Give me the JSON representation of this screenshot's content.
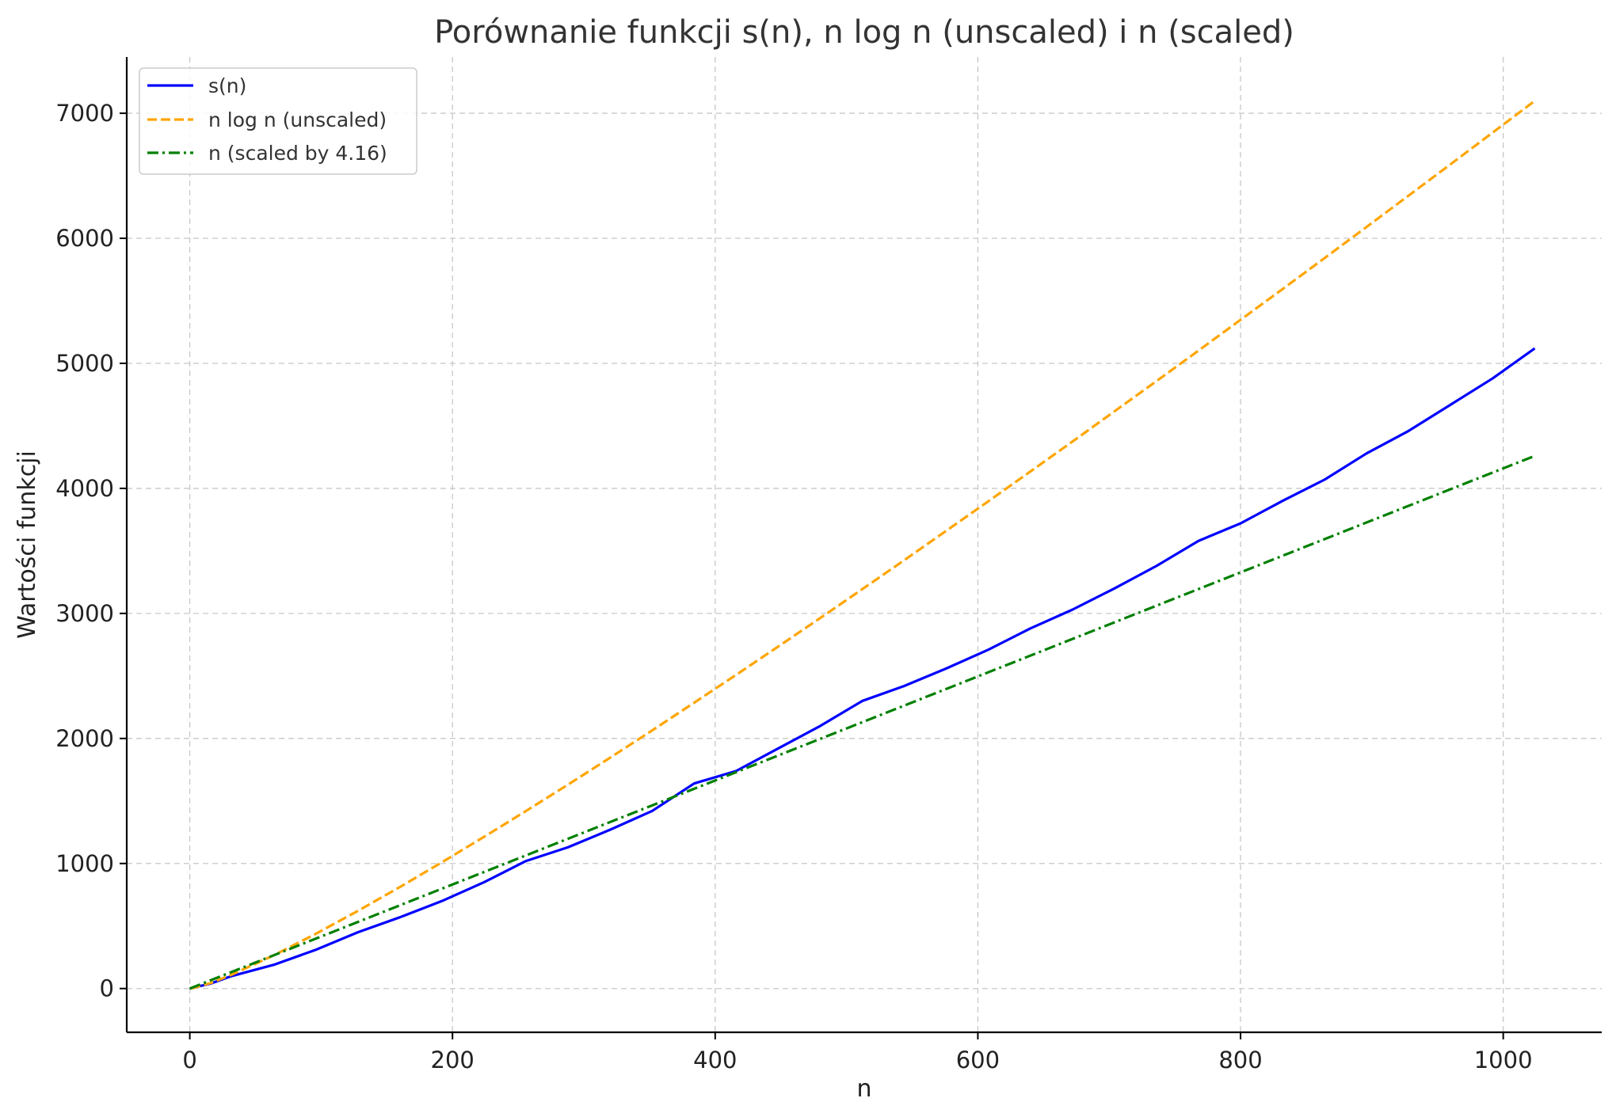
{
  "chart_data": {
    "type": "line",
    "title": "Porównanie funkcji s(n), n log n (unscaled) i n (scaled)",
    "xlabel": "n",
    "ylabel": "Wartości funkcji",
    "xlim": [
      -48,
      1075
    ],
    "ylim": [
      -350,
      7450
    ],
    "xticks": [
      0,
      200,
      400,
      600,
      800,
      1000
    ],
    "xtick_labels": [
      "0",
      "200",
      "400",
      "600",
      "800",
      "1000"
    ],
    "yticks": [
      0,
      1000,
      2000,
      3000,
      4000,
      5000,
      6000,
      7000
    ],
    "ytick_labels": [
      "0",
      "1000",
      "2000",
      "3000",
      "4000",
      "5000",
      "6000",
      "7000"
    ],
    "grid": true,
    "legend_position": "top-left",
    "series": [
      {
        "name": "s(n)",
        "color": "#0000ff",
        "style": "solid",
        "x": [
          0,
          16,
          32,
          64,
          96,
          128,
          160,
          192,
          224,
          256,
          288,
          320,
          352,
          384,
          416,
          448,
          480,
          512,
          544,
          576,
          608,
          640,
          672,
          704,
          736,
          768,
          800,
          832,
          864,
          896,
          928,
          960,
          992,
          1024
        ],
        "y": [
          0,
          40,
          100,
          190,
          310,
          450,
          570,
          700,
          850,
          1020,
          1130,
          1270,
          1420,
          1640,
          1740,
          1920,
          2100,
          2300,
          2420,
          2560,
          2710,
          2880,
          3030,
          3200,
          3380,
          3580,
          3720,
          3900,
          4070,
          4280,
          4460,
          4670,
          4880,
          5120
        ]
      },
      {
        "name": "n log n (unscaled)",
        "color": "#ffa500",
        "style": "dashed",
        "x": [
          1,
          16,
          32,
          64,
          96,
          128,
          160,
          192,
          224,
          256,
          288,
          320,
          352,
          384,
          416,
          448,
          480,
          512,
          544,
          576,
          608,
          640,
          672,
          704,
          736,
          768,
          800,
          832,
          864,
          896,
          928,
          960,
          992,
          1024
        ],
        "y": [
          0,
          44,
          111,
          266,
          438,
          621,
          812,
          1010,
          1213,
          1420,
          1631,
          1846,
          2064,
          2286,
          2509,
          2735,
          2963,
          3194,
          3426,
          3661,
          3897,
          4135,
          4374,
          4616,
          4858,
          5102,
          5348,
          5594,
          5842,
          6091,
          6342,
          6593,
          6846,
          7099
        ]
      },
      {
        "name": "n (scaled by 4.16)",
        "color": "#008000",
        "style": "dashdot",
        "x": [
          0,
          1024
        ],
        "y": [
          0,
          4260
        ]
      }
    ]
  }
}
